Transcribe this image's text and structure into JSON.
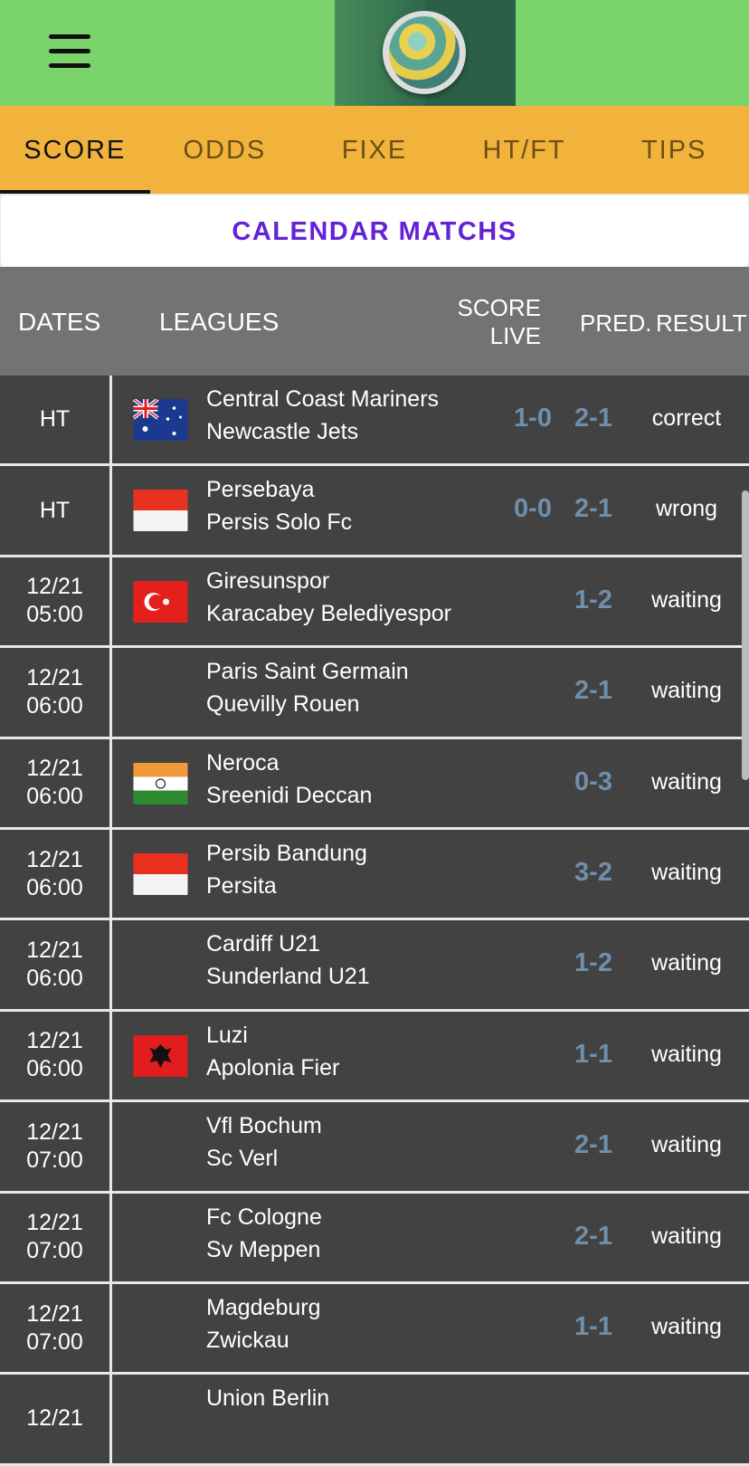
{
  "header": {
    "menu_icon": "hamburger-menu-icon",
    "logo_icon": "soccer-ball-logo"
  },
  "tabs": [
    {
      "label": "SCORE",
      "active": true
    },
    {
      "label": "ODDS"
    },
    {
      "label": "FIXE"
    },
    {
      "label": "HT/FT"
    },
    {
      "label": "TIPS"
    }
  ],
  "banner": {
    "title": "CALENDAR MATCHS"
  },
  "table_header": {
    "dates": "DATES",
    "leagues": "LEAGUES",
    "score_live_1": "SCORE",
    "score_live_2": "LIVE",
    "pred": "PRED.",
    "result": "RESULT"
  },
  "colors": {
    "topbar": "#7ad36b",
    "tabs": "#f2b33d",
    "banner_text": "#6322d8",
    "row_bg": "#424242",
    "score": "#6f8fac"
  },
  "matches": [
    {
      "date": "HT",
      "time": "",
      "flag": "australia",
      "home": "Central Coast Mariners",
      "away": "Newcastle Jets",
      "live": "1-0",
      "pred": "2-1",
      "result": "correct"
    },
    {
      "date": "HT",
      "time": "",
      "flag": "indonesia",
      "home": "Persebaya",
      "away": "Persis Solo Fc",
      "live": "0-0",
      "pred": "2-1",
      "result": "wrong"
    },
    {
      "date": "12/21",
      "time": "05:00",
      "flag": "turkey",
      "home": "Giresunspor",
      "away": "Karacabey Belediyespor",
      "live": "",
      "pred": "1-2",
      "result": "waiting"
    },
    {
      "date": "12/21",
      "time": "06:00",
      "flag": "",
      "home": "Paris Saint Germain",
      "away": "Quevilly Rouen",
      "live": "",
      "pred": "2-1",
      "result": "waiting"
    },
    {
      "date": "12/21",
      "time": "06:00",
      "flag": "india",
      "home": "Neroca",
      "away": "Sreenidi Deccan",
      "live": "",
      "pred": "0-3",
      "result": "waiting"
    },
    {
      "date": "12/21",
      "time": "06:00",
      "flag": "indonesia",
      "home": "Persib Bandung",
      "away": "Persita",
      "live": "",
      "pred": "3-2",
      "result": "waiting"
    },
    {
      "date": "12/21",
      "time": "06:00",
      "flag": "",
      "home": "Cardiff U21",
      "away": "Sunderland U21",
      "live": "",
      "pred": "1-2",
      "result": "waiting"
    },
    {
      "date": "12/21",
      "time": "06:00",
      "flag": "albania",
      "home": "Luzi",
      "away": "Apolonia Fier",
      "live": "",
      "pred": "1-1",
      "result": "waiting"
    },
    {
      "date": "12/21",
      "time": "07:00",
      "flag": "",
      "home": "Vfl Bochum",
      "away": "Sc Verl",
      "live": "",
      "pred": "2-1",
      "result": "waiting"
    },
    {
      "date": "12/21",
      "time": "07:00",
      "flag": "",
      "home": "Fc Cologne",
      "away": "Sv Meppen",
      "live": "",
      "pred": "2-1",
      "result": "waiting"
    },
    {
      "date": "12/21",
      "time": "07:00",
      "flag": "",
      "home": "Magdeburg",
      "away": "Zwickau",
      "live": "",
      "pred": "1-1",
      "result": "waiting"
    },
    {
      "date": "12/21",
      "time": "",
      "flag": "",
      "home": "Union Berlin",
      "away": "",
      "live": "",
      "pred": "",
      "result": ""
    }
  ]
}
